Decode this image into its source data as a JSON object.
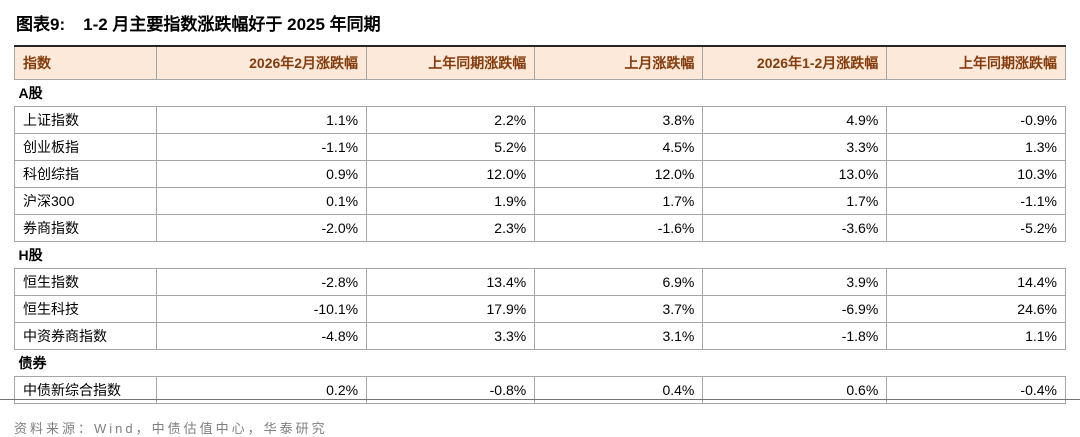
{
  "header": {
    "figure_label": "图表9:",
    "title": "1-2 月主要指数涨跌幅好于 2025 年同期"
  },
  "chart_data": {
    "type": "table",
    "title": "1-2 月主要指数涨跌幅好于 2025 年同期",
    "columns": [
      "指数",
      "2026年2月涨跌幅",
      "上年同期涨跌幅",
      "上月涨跌幅",
      "2026年1-2月涨跌幅",
      "上年同期涨跌幅"
    ],
    "sections": [
      {
        "name": "A股",
        "rows": [
          {
            "index": "上证指数",
            "values": [
              "1.1%",
              "2.2%",
              "3.8%",
              "4.9%",
              "-0.9%"
            ]
          },
          {
            "index": "创业板指",
            "values": [
              "-1.1%",
              "5.2%",
              "4.5%",
              "3.3%",
              "1.3%"
            ]
          },
          {
            "index": "科创综指",
            "values": [
              "0.9%",
              "12.0%",
              "12.0%",
              "13.0%",
              "10.3%"
            ]
          },
          {
            "index": "沪深300",
            "values": [
              "0.1%",
              "1.9%",
              "1.7%",
              "1.7%",
              "-1.1%"
            ]
          },
          {
            "index": "券商指数",
            "values": [
              "-2.0%",
              "2.3%",
              "-1.6%",
              "-3.6%",
              "-5.2%"
            ]
          }
        ]
      },
      {
        "name": "H股",
        "rows": [
          {
            "index": "恒生指数",
            "values": [
              "-2.8%",
              "13.4%",
              "6.9%",
              "3.9%",
              "14.4%"
            ]
          },
          {
            "index": "恒生科技",
            "values": [
              "-10.1%",
              "17.9%",
              "3.7%",
              "-6.9%",
              "24.6%"
            ]
          },
          {
            "index": "中资券商指数",
            "values": [
              "-4.8%",
              "3.3%",
              "3.1%",
              "-1.8%",
              "1.1%"
            ]
          }
        ]
      },
      {
        "name": "债券",
        "rows": [
          {
            "index": "中债新综合指数",
            "values": [
              "0.2%",
              "-0.8%",
              "0.4%",
              "0.6%",
              "-0.4%"
            ]
          }
        ]
      }
    ]
  },
  "footer": {
    "source": "资料来源：Wind，中债估值中心，华泰研究"
  },
  "colors": {
    "header_bg": "#fde9d9",
    "header_text": "#843c0c",
    "border": "#a6a6a6",
    "source_text": "#7f7f7f"
  }
}
